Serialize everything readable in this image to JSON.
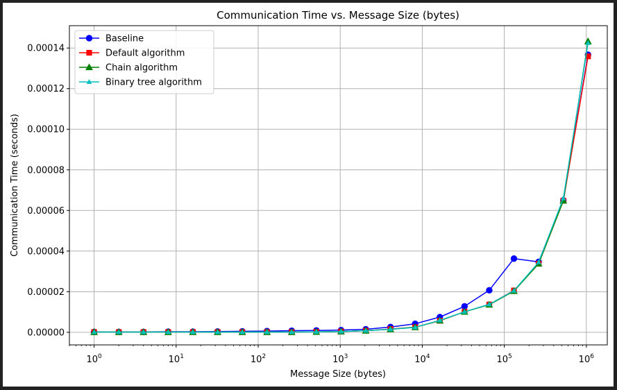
{
  "chart_data": {
    "type": "line",
    "title": "Communication Time vs. Message Size (bytes)",
    "xlabel": "Message Size (bytes)",
    "ylabel": "Communication Time (seconds)",
    "x_scale": "log",
    "x_range": [
      0.5,
      1800000
    ],
    "y_range": [
      -6.2e-06,
      0.000151
    ],
    "grid": true,
    "legend_position": "top-left",
    "x_ticks": [
      {
        "value": 1,
        "base": "10",
        "exp": "0"
      },
      {
        "value": 10,
        "base": "10",
        "exp": "1"
      },
      {
        "value": 100,
        "base": "10",
        "exp": "2"
      },
      {
        "value": 1000,
        "base": "10",
        "exp": "3"
      },
      {
        "value": 10000,
        "base": "10",
        "exp": "4"
      },
      {
        "value": 100000,
        "base": "10",
        "exp": "5"
      },
      {
        "value": 1000000,
        "base": "10",
        "exp": "6"
      }
    ],
    "y_ticks": [
      {
        "value": 0,
        "label": "0.00000"
      },
      {
        "value": 2e-05,
        "label": "0.00002"
      },
      {
        "value": 4e-05,
        "label": "0.00004"
      },
      {
        "value": 6e-05,
        "label": "0.00006"
      },
      {
        "value": 8e-05,
        "label": "0.00008"
      },
      {
        "value": 0.0001,
        "label": "0.00010"
      },
      {
        "value": 0.00012,
        "label": "0.00012"
      },
      {
        "value": 0.00014,
        "label": "0.00014"
      }
    ],
    "x": [
      1,
      2,
      4,
      8,
      16,
      32,
      64,
      128,
      256,
      512,
      1024,
      2048,
      4096,
      8192,
      16384,
      32768,
      65536,
      131072,
      262144,
      524288,
      1048576
    ],
    "series": [
      {
        "name": "Baseline",
        "color": "#0000ff",
        "marker": "circle",
        "values": [
          2e-07,
          2e-07,
          2e-07,
          3e-07,
          3e-07,
          4e-07,
          5e-07,
          6e-07,
          8e-07,
          9e-07,
          1.1e-06,
          1.5e-06,
          2.6e-06,
          4.2e-06,
          7.5e-06,
          1.28e-05,
          2.07e-05,
          3.63e-05,
          3.47e-05,
          6.5e-05,
          0.0001367
        ]
      },
      {
        "name": "Default algorithm",
        "color": "#ff0000",
        "marker": "square",
        "values": [
          1e-07,
          1e-07,
          1e-07,
          1e-07,
          1e-07,
          1e-07,
          1e-07,
          1e-07,
          1e-07,
          2e-07,
          4e-07,
          8e-07,
          1.6e-06,
          2.5e-06,
          5.7e-06,
          1.01e-05,
          1.37e-05,
          2.06e-05,
          3.38e-05,
          6.48e-05,
          0.0001359
        ]
      },
      {
        "name": "Chain algorithm",
        "color": "#008000",
        "marker": "triangle",
        "values": [
          1e-07,
          1e-07,
          1e-07,
          1e-07,
          1e-07,
          1e-07,
          1e-07,
          1e-07,
          1e-07,
          2e-07,
          4e-07,
          8e-07,
          1.5e-06,
          2.5e-06,
          5.8e-06,
          1.01e-05,
          1.36e-05,
          2.03e-05,
          3.38e-05,
          6.48e-05,
          0.0001433
        ]
      },
      {
        "name": "Binary tree algorithm",
        "color": "#00bfbf",
        "marker": "small-triangle",
        "values": [
          1e-07,
          1e-07,
          1e-07,
          1e-07,
          1e-07,
          1e-07,
          1e-07,
          1e-07,
          1e-07,
          2e-07,
          4e-07,
          8e-07,
          1.5e-06,
          2.4e-06,
          5.9e-06,
          1.01e-05,
          1.38e-05,
          2.05e-05,
          3.45e-05,
          6.6e-05,
          0.0001425
        ]
      }
    ]
  }
}
